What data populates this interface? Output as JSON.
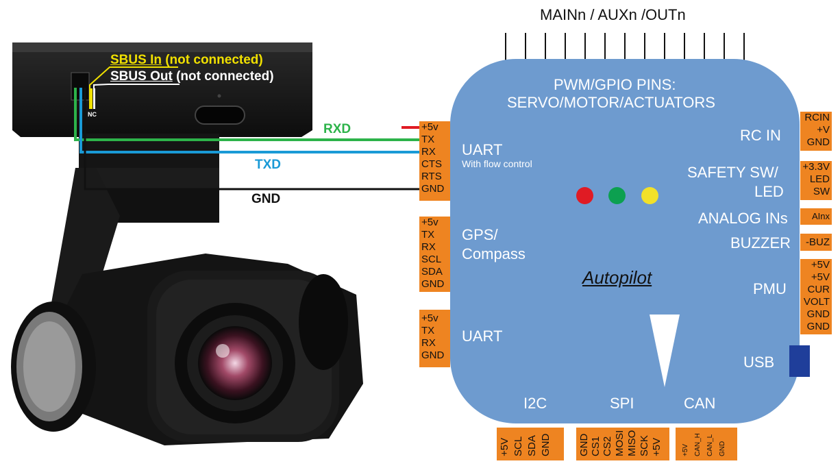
{
  "header": {
    "outputs_title": "MAINn / AUXn /OUTn"
  },
  "camera": {
    "sbus_in_label": "SBUS In",
    "sbus_in_note": "(not connected)",
    "sbus_out_label": "SBUS Out",
    "sbus_out_note": "(not connected)",
    "nc_label": "NC"
  },
  "wires": {
    "rxd": "RXD",
    "txd": "TXD",
    "gnd": "GND"
  },
  "autopilot": {
    "title": "Autopilot",
    "pwm_line1": "PWM/GPIO PINS:",
    "pwm_line2": "SERVO/MOTOR/ACTUATORS",
    "uart1_label": "UART",
    "uart1_sub": "With flow control",
    "gps_line1": "GPS/",
    "gps_line2": "Compass",
    "uart2_label": "UART",
    "rcin_label": "RC IN",
    "safety_line1": "SAFETY SW/",
    "safety_line2": "LED",
    "analog_label": "ANALOG INs",
    "buzzer_label": "BUZZER",
    "pmu_label": "PMU",
    "usb_label": "USB",
    "i2c_label": "I2C",
    "spi_label": "SPI",
    "can_label": "CAN"
  },
  "connectors": {
    "uart1": [
      "+5v",
      "TX",
      "RX",
      "CTS",
      "RTS",
      "GND"
    ],
    "gps": [
      "+5v",
      "TX",
      "RX",
      "SCL",
      "SDA",
      "GND"
    ],
    "uart2": [
      "+5v",
      "TX",
      "RX",
      "GND"
    ],
    "rcin": [
      "RCIN",
      "+V",
      "GND"
    ],
    "safety": [
      "+3.3V",
      "LED",
      "SW"
    ],
    "analog": [
      "AInx"
    ],
    "buzzer": [
      "-BUZ"
    ],
    "pmu": [
      "+5V",
      "+5V",
      "CUR",
      "VOLT",
      "GND",
      "GND"
    ],
    "i2c": [
      "+5V",
      "SCL",
      "SDA",
      "GND"
    ],
    "spi": [
      "GND",
      "CS1",
      "CS2",
      "MOSI",
      "MISO",
      "SCK",
      "+5V"
    ],
    "can": [
      "+5V",
      "CAN_H",
      "CAN_L",
      "GND"
    ]
  },
  "colors": {
    "board": "#6e9bcf",
    "connector": "#ee8421",
    "rxd_wire": "#2db34a",
    "txd_wire": "#1a9ad6",
    "gnd_wire": "#111111",
    "sbus_in": "#f0e000",
    "led_red": "#e01b24",
    "led_green": "#0ca050",
    "led_yellow": "#f2e12a",
    "usb": "#1f3e9a"
  }
}
